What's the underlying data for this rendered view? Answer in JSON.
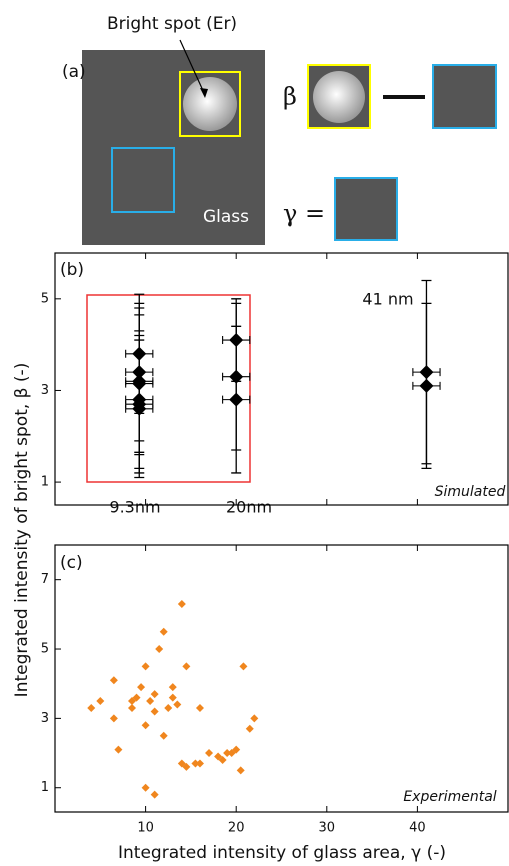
{
  "panel_a": {
    "label": "(a)",
    "spot_label": "Bright spot (Er)",
    "glass_label": "Glass",
    "beta_eq": "β =",
    "gamma_eq": "γ ="
  },
  "shared_ylabel": "Integrated intensity of bright spot, β (-)",
  "chart_data": [
    {
      "type": "errorbar",
      "panel_label": "(b)",
      "annotations": [
        "9.3nm",
        "20nm",
        "41 nm",
        "Simulated"
      ],
      "xlim": [
        0,
        50
      ],
      "ylim": [
        0.5,
        6
      ],
      "xticks": [
        10,
        20,
        30,
        40
      ],
      "xticklabels": false,
      "yticks": [
        1,
        3,
        5
      ],
      "series": [
        {
          "color": "#000000",
          "x": [
            9.3,
            9.3,
            9.3,
            9.3,
            9.3,
            9.3,
            9.3,
            20,
            20,
            20,
            41,
            41
          ],
          "y": [
            3.8,
            3.4,
            3.2,
            3.15,
            2.8,
            2.7,
            2.6,
            4.1,
            3.3,
            2.8,
            3.4,
            3.1
          ],
          "xerr": [
            1.5,
            1.5,
            1.5,
            1.5,
            1.5,
            1.5,
            1.5,
            1.5,
            1.5,
            1.5,
            1.5,
            1.5
          ],
          "yerr": [
            1.3,
            1.5,
            1.6,
            1.5,
            1.5,
            1.5,
            1.5,
            0.9,
            1.6,
            1.6,
            2.0,
            1.8
          ]
        }
      ]
    },
    {
      "type": "scatter",
      "panel_label": "(c)",
      "annotations": [
        "Experimental"
      ],
      "xlabel": "Integrated intensity of glass area, γ (-)",
      "xlim": [
        0,
        50
      ],
      "ylim": [
        0.3,
        8
      ],
      "xticks": [
        10,
        20,
        30,
        40
      ],
      "xticklabels": true,
      "yticks": [
        1,
        3,
        5,
        7
      ],
      "series": [
        {
          "color": "#f0861e",
          "x": [
            4,
            5,
            6.5,
            6.5,
            7,
            8.5,
            8.5,
            9,
            9.5,
            10,
            10,
            10.5,
            11,
            11,
            11.5,
            12,
            12.5,
            13,
            13,
            13.5,
            14,
            14.5,
            12,
            14,
            14.5,
            15.5,
            16,
            16,
            17,
            18,
            18.5,
            19,
            19.5,
            20,
            20.5,
            20.8,
            21.5,
            22,
            10,
            11
          ],
          "y": [
            3.3,
            3.5,
            4.1,
            3.0,
            2.1,
            3.3,
            3.5,
            3.6,
            3.9,
            4.5,
            2.8,
            3.5,
            3.2,
            3.7,
            5.0,
            5.5,
            3.3,
            3.6,
            3.9,
            3.4,
            6.3,
            4.5,
            2.5,
            1.7,
            1.6,
            1.7,
            1.7,
            3.3,
            2.0,
            1.9,
            1.8,
            2.0,
            2.0,
            2.1,
            1.5,
            4.5,
            2.7,
            3.0,
            1.0,
            0.8
          ]
        }
      ]
    }
  ]
}
